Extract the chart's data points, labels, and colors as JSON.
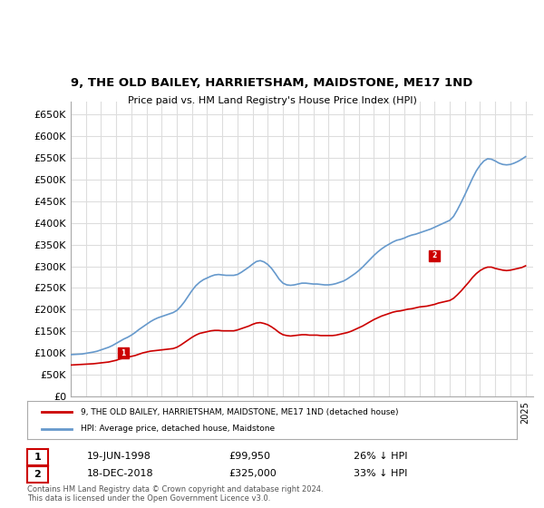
{
  "title": "9, THE OLD BAILEY, HARRIETSHAM, MAIDSTONE, ME17 1ND",
  "subtitle": "Price paid vs. HM Land Registry's House Price Index (HPI)",
  "ylabel_ticks": [
    "£0",
    "£50K",
    "£100K",
    "£150K",
    "£200K",
    "£250K",
    "£300K",
    "£350K",
    "£400K",
    "£450K",
    "£500K",
    "£550K",
    "£600K",
    "£650K"
  ],
  "ytick_vals": [
    0,
    50000,
    100000,
    150000,
    200000,
    250000,
    300000,
    350000,
    400000,
    450000,
    500000,
    550000,
    600000,
    650000
  ],
  "ylim": [
    0,
    680000
  ],
  "xlim_start": 1995.0,
  "xlim_end": 2025.5,
  "legend_line1": "9, THE OLD BAILEY, HARRIETSHAM, MAIDSTONE, ME17 1ND (detached house)",
  "legend_line2": "HPI: Average price, detached house, Maidstone",
  "purchase1_date": "19-JUN-1998",
  "purchase1_price": "£99,950",
  "purchase1_hpi": "26% ↓ HPI",
  "purchase2_date": "18-DEC-2018",
  "purchase2_price": "£325,000",
  "purchase2_hpi": "33% ↓ HPI",
  "footnote": "Contains HM Land Registry data © Crown copyright and database right 2024.\nThis data is licensed under the Open Government Licence v3.0.",
  "red_color": "#cc0000",
  "blue_color": "#6699cc",
  "bg_color": "#ffffff",
  "grid_color": "#dddddd",
  "purchase_marker_color": "#cc0000",
  "hpi_x": [
    1995.0,
    1995.25,
    1995.5,
    1995.75,
    1996.0,
    1996.25,
    1996.5,
    1996.75,
    1997.0,
    1997.25,
    1997.5,
    1997.75,
    1998.0,
    1998.25,
    1998.5,
    1998.75,
    1999.0,
    1999.25,
    1999.5,
    1999.75,
    2000.0,
    2000.25,
    2000.5,
    2000.75,
    2001.0,
    2001.25,
    2001.5,
    2001.75,
    2002.0,
    2002.25,
    2002.5,
    2002.75,
    2003.0,
    2003.25,
    2003.5,
    2003.75,
    2004.0,
    2004.25,
    2004.5,
    2004.75,
    2005.0,
    2005.25,
    2005.5,
    2005.75,
    2006.0,
    2006.25,
    2006.5,
    2006.75,
    2007.0,
    2007.25,
    2007.5,
    2007.75,
    2008.0,
    2008.25,
    2008.5,
    2008.75,
    2009.0,
    2009.25,
    2009.5,
    2009.75,
    2010.0,
    2010.25,
    2010.5,
    2010.75,
    2011.0,
    2011.25,
    2011.5,
    2011.75,
    2012.0,
    2012.25,
    2012.5,
    2012.75,
    2013.0,
    2013.25,
    2013.5,
    2013.75,
    2014.0,
    2014.25,
    2014.5,
    2014.75,
    2015.0,
    2015.25,
    2015.5,
    2015.75,
    2016.0,
    2016.25,
    2016.5,
    2016.75,
    2017.0,
    2017.25,
    2017.5,
    2017.75,
    2018.0,
    2018.25,
    2018.5,
    2018.75,
    2019.0,
    2019.25,
    2019.5,
    2019.75,
    2020.0,
    2020.25,
    2020.5,
    2020.75,
    2021.0,
    2021.25,
    2021.5,
    2021.75,
    2022.0,
    2022.25,
    2022.5,
    2022.75,
    2023.0,
    2023.25,
    2023.5,
    2023.75,
    2024.0,
    2024.25,
    2024.5,
    2024.75,
    2025.0
  ],
  "hpi_y": [
    96000,
    96500,
    97000,
    97500,
    99000,
    100500,
    102000,
    104000,
    107000,
    110000,
    113000,
    117000,
    122000,
    127000,
    132000,
    136000,
    141000,
    147000,
    154000,
    160000,
    166000,
    172000,
    177000,
    181000,
    184000,
    187000,
    190000,
    193000,
    198000,
    207000,
    218000,
    231000,
    244000,
    255000,
    263000,
    269000,
    273000,
    277000,
    280000,
    281000,
    280000,
    279000,
    279000,
    279000,
    281000,
    286000,
    292000,
    298000,
    305000,
    311000,
    313000,
    310000,
    304000,
    295000,
    283000,
    270000,
    261000,
    257000,
    256000,
    257000,
    259000,
    261000,
    261000,
    260000,
    259000,
    259000,
    258000,
    257000,
    257000,
    258000,
    260000,
    263000,
    266000,
    271000,
    277000,
    283000,
    290000,
    298000,
    307000,
    316000,
    325000,
    333000,
    340000,
    346000,
    351000,
    356000,
    360000,
    362000,
    365000,
    369000,
    372000,
    374000,
    377000,
    380000,
    383000,
    386000,
    390000,
    394000,
    398000,
    402000,
    406000,
    415000,
    430000,
    447000,
    465000,
    484000,
    503000,
    520000,
    533000,
    543000,
    548000,
    547000,
    543000,
    538000,
    535000,
    534000,
    535000,
    538000,
    542000,
    547000,
    553000
  ],
  "red_x": [
    1995.0,
    1995.25,
    1995.5,
    1995.75,
    1996.0,
    1996.25,
    1996.5,
    1996.75,
    1997.0,
    1997.25,
    1997.5,
    1997.75,
    1998.0,
    1998.25,
    1998.5,
    1998.75,
    1999.0,
    1999.25,
    1999.5,
    1999.75,
    2000.0,
    2000.25,
    2000.5,
    2000.75,
    2001.0,
    2001.25,
    2001.5,
    2001.75,
    2002.0,
    2002.25,
    2002.5,
    2002.75,
    2003.0,
    2003.25,
    2003.5,
    2003.75,
    2004.0,
    2004.25,
    2004.5,
    2004.75,
    2005.0,
    2005.25,
    2005.5,
    2005.75,
    2006.0,
    2006.25,
    2006.5,
    2006.75,
    2007.0,
    2007.25,
    2007.5,
    2007.75,
    2008.0,
    2008.25,
    2008.5,
    2008.75,
    2009.0,
    2009.25,
    2009.5,
    2009.75,
    2010.0,
    2010.25,
    2010.5,
    2010.75,
    2011.0,
    2011.25,
    2011.5,
    2011.75,
    2012.0,
    2012.25,
    2012.5,
    2012.75,
    2013.0,
    2013.25,
    2013.5,
    2013.75,
    2014.0,
    2014.25,
    2014.5,
    2014.75,
    2015.0,
    2015.25,
    2015.5,
    2015.75,
    2016.0,
    2016.25,
    2016.5,
    2016.75,
    2017.0,
    2017.25,
    2017.5,
    2017.75,
    2018.0,
    2018.25,
    2018.5,
    2018.75,
    2019.0,
    2019.25,
    2019.5,
    2019.75,
    2020.0,
    2020.25,
    2020.5,
    2020.75,
    2021.0,
    2021.25,
    2021.5,
    2021.75,
    2022.0,
    2022.25,
    2022.5,
    2022.75,
    2023.0,
    2023.25,
    2023.5,
    2023.75,
    2024.0,
    2024.25,
    2024.5,
    2024.75,
    2025.0
  ],
  "red_y": [
    72000,
    72500,
    73000,
    73500,
    74000,
    74500,
    75000,
    76000,
    77000,
    78000,
    79000,
    81000,
    83000,
    86000,
    88000,
    90000,
    92000,
    94000,
    97000,
    100000,
    102000,
    104000,
    105000,
    106000,
    107000,
    108000,
    109000,
    110000,
    113000,
    118000,
    124000,
    130000,
    136000,
    141000,
    145000,
    147000,
    149000,
    151000,
    152000,
    152000,
    151000,
    151000,
    151000,
    151000,
    153000,
    156000,
    159000,
    162000,
    166000,
    169000,
    170000,
    168000,
    165000,
    160000,
    154000,
    147000,
    142000,
    140000,
    139000,
    140000,
    141000,
    142000,
    142000,
    141000,
    141000,
    141000,
    140000,
    140000,
    140000,
    140000,
    141000,
    143000,
    145000,
    147000,
    150000,
    154000,
    158000,
    162000,
    167000,
    172000,
    177000,
    181000,
    185000,
    188000,
    191000,
    194000,
    196000,
    197000,
    199000,
    201000,
    202000,
    204000,
    206000,
    207000,
    208000,
    210000,
    212000,
    215000,
    217000,
    219000,
    221000,
    226000,
    234000,
    243000,
    253000,
    263000,
    274000,
    283000,
    290000,
    295000,
    298000,
    298000,
    295000,
    293000,
    291000,
    290000,
    291000,
    293000,
    295000,
    297000,
    301000
  ],
  "purchase1_x": 1998.46,
  "purchase1_y": 99950,
  "purchase2_x": 2018.96,
  "purchase2_y": 325000,
  "marker1_label": "1",
  "marker2_label": "2"
}
